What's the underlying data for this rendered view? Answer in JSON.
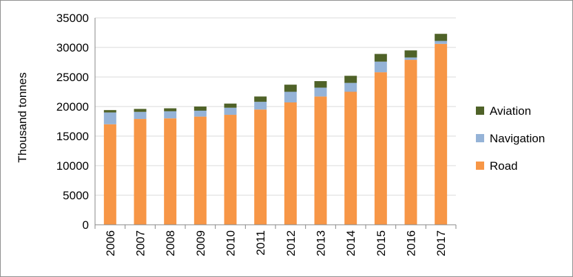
{
  "chart_data": {
    "type": "bar",
    "stacked": true,
    "title": "",
    "xlabel": "",
    "ylabel": "Thousand tonnes",
    "ylim": [
      0,
      35000
    ],
    "yticks": [
      0,
      5000,
      10000,
      15000,
      20000,
      25000,
      30000,
      35000
    ],
    "grid": true,
    "legend_position": "right",
    "categories": [
      "2006",
      "2007",
      "2008",
      "2009",
      "2010",
      "2011",
      "2012",
      "2013",
      "2014",
      "2015",
      "2016",
      "2017"
    ],
    "series": [
      {
        "name": "Road",
        "color": "#f79646",
        "values": [
          17000,
          17900,
          18000,
          18300,
          18600,
          19500,
          20700,
          21700,
          22500,
          25800,
          27900,
          30600
        ]
      },
      {
        "name": "Navigation",
        "color": "#95b3d7",
        "values": [
          2000,
          1200,
          1200,
          1000,
          1200,
          1300,
          1800,
          1500,
          1500,
          1800,
          400,
          500
        ]
      },
      {
        "name": "Aviation",
        "color": "#4f6228",
        "values": [
          400,
          500,
          500,
          700,
          700,
          900,
          1200,
          1100,
          1200,
          1300,
          1200,
          1200
        ]
      }
    ],
    "legend_order": [
      "Aviation",
      "Navigation",
      "Road"
    ]
  }
}
